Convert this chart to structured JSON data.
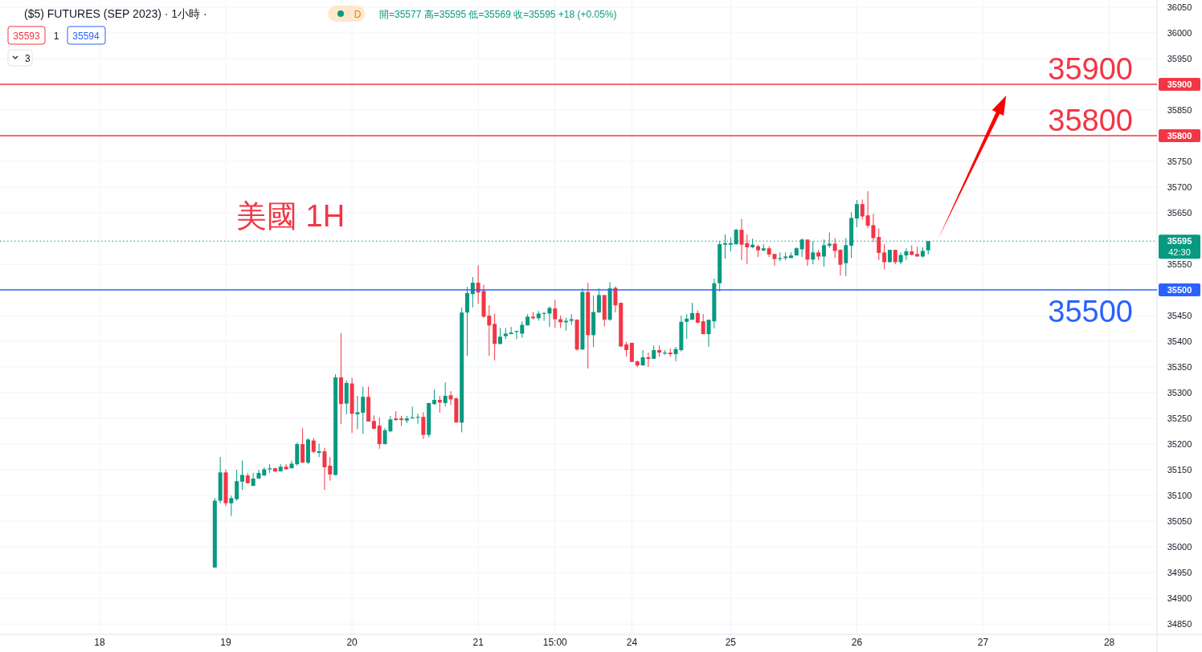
{
  "chart_data": {
    "type": "candlestick",
    "title": "($5) FUTURES (SEP 2023) · 1小時 ·",
    "annotations": [
      "美國 1H",
      "開=35577 高=35595 低=35569 收=35595 +18 (+0.05%)",
      "D",
      "35593",
      "1",
      "35594",
      "3",
      {
        "text": "35900",
        "y": 35900
      },
      {
        "text": "35800",
        "y": 35800
      },
      {
        "text": "35500",
        "y": 35500
      },
      "42:30"
    ],
    "categories": [
      null,
      null,
      null,
      null,
      null,
      null,
      null,
      null,
      null,
      null,
      null,
      null,
      null,
      null,
      null,
      null,
      null,
      null,
      "18",
      null,
      null,
      null,
      null,
      null,
      null,
      null,
      null,
      null,
      null,
      null,
      null,
      null,
      null,
      null,
      null,
      null,
      null,
      null,
      null,
      null,
      null,
      "19",
      null,
      null,
      null,
      null,
      null,
      null,
      null,
      null,
      null,
      null,
      null,
      null,
      null,
      null,
      null,
      null,
      null,
      null,
      null,
      null,
      null,
      null,
      "20",
      null,
      null,
      null,
      null,
      null,
      null,
      null,
      null,
      null,
      null,
      null,
      null,
      null,
      null,
      null,
      null,
      null,
      null,
      null,
      null,
      null,
      null,
      "21",
      null,
      null,
      null,
      null,
      null,
      null,
      null,
      null,
      null,
      null,
      null,
      null,
      null,
      "15:00",
      null,
      null,
      null,
      null,
      null,
      null,
      null,
      null,
      null,
      null,
      null,
      null,
      null,
      "24",
      null,
      null,
      null,
      null,
      null,
      null,
      null,
      null,
      null,
      null,
      null,
      null,
      null,
      null,
      null,
      null,
      null,
      "25",
      null,
      null,
      null,
      null,
      null,
      null,
      null,
      null,
      null,
      null,
      null,
      null,
      null,
      null,
      null,
      null,
      null,
      null,
      null,
      null,
      null,
      null,
      "26",
      null,
      null,
      null,
      null,
      null,
      null,
      null,
      null,
      null,
      null,
      null,
      null,
      null,
      null,
      null,
      null,
      null,
      null,
      null,
      null,
      null,
      null,
      "27",
      null,
      null,
      null,
      null,
      null,
      null,
      null,
      null,
      null,
      null,
      null,
      null,
      null,
      null,
      null,
      null,
      null,
      null,
      null,
      null,
      null,
      null,
      "28",
      null,
      null,
      null,
      null,
      null,
      null,
      null,
      null
    ],
    "ohlc": [
      null,
      null,
      null,
      null,
      null,
      null,
      null,
      null,
      null,
      null,
      null,
      null,
      null,
      null,
      null,
      null,
      null,
      null,
      null,
      null,
      null,
      null,
      null,
      null,
      null,
      null,
      null,
      null,
      null,
      null,
      null,
      null,
      null,
      null,
      null,
      null,
      null,
      null,
      null,
      [
        34960,
        35095,
        34960,
        35090
      ],
      [
        35090,
        35175,
        35085,
        35145
      ],
      [
        35145,
        35151,
        35080,
        35085
      ],
      [
        35085,
        35100,
        35060,
        35095
      ],
      [
        35093,
        35150,
        35090,
        35128
      ],
      [
        35127,
        35168,
        35111,
        35140
      ],
      [
        35139,
        35144,
        35124,
        35124
      ],
      [
        35119,
        35144,
        35118,
        35133
      ],
      [
        35133,
        35150,
        35133,
        35144
      ],
      [
        35139,
        35155,
        35138,
        35151
      ],
      [
        35151,
        35161,
        35144,
        35153
      ],
      [
        35153,
        35154,
        35146,
        35147
      ],
      [
        35147,
        35161,
        35147,
        35156
      ],
      [
        35156,
        35161,
        35151,
        35151
      ],
      [
        35153,
        35168,
        35153,
        35162
      ],
      [
        35161,
        35203,
        35158,
        35200
      ],
      [
        35200,
        35231,
        35164,
        35164
      ],
      [
        35164,
        35211,
        35161,
        35209
      ],
      [
        35207,
        35212,
        35182,
        35185
      ],
      [
        35183,
        35201,
        35175,
        35186
      ],
      [
        35186,
        35193,
        35111,
        35155
      ],
      [
        35158,
        35175,
        35129,
        35141
      ],
      [
        35140,
        35336,
        35139,
        35330
      ],
      [
        35330,
        35416,
        35239,
        35278
      ],
      [
        35279,
        35324,
        35258,
        35319
      ],
      [
        35318,
        35329,
        35222,
        35259
      ],
      [
        35258,
        35294,
        35229,
        35262
      ],
      [
        35261,
        35312,
        35220,
        35292
      ],
      [
        35292,
        35312,
        35244,
        35244
      ],
      [
        35245,
        35256,
        35229,
        35230
      ],
      [
        35236,
        35252,
        35191,
        35200
      ],
      [
        35200,
        35231,
        35200,
        35227
      ],
      [
        35225,
        35255,
        35223,
        35248
      ],
      [
        35250,
        35264,
        35245,
        35247
      ],
      [
        35250,
        35255,
        35235,
        35247
      ],
      [
        35246,
        35255,
        35241,
        35250
      ],
      [
        35250,
        35273,
        35250,
        35252
      ],
      [
        35252,
        35259,
        35239,
        35253
      ],
      [
        35253,
        35262,
        35210,
        35218
      ],
      [
        35218,
        35280,
        35213,
        35280
      ],
      [
        35278,
        35306,
        35276,
        35286
      ],
      [
        35286,
        35294,
        35261,
        35281
      ],
      [
        35280,
        35320,
        35273,
        35294
      ],
      [
        35295,
        35303,
        35276,
        35287
      ],
      [
        35289,
        35291,
        35242,
        35242
      ],
      [
        35242,
        35466,
        35223,
        35456
      ],
      [
        35456,
        35506,
        35372,
        35494
      ],
      [
        35492,
        35525,
        35466,
        35514
      ],
      [
        35514,
        35548,
        35473,
        35495
      ],
      [
        35498,
        35510,
        35446,
        35448
      ],
      [
        35450,
        35470,
        35372,
        35431
      ],
      [
        35434,
        35454,
        35363,
        35395
      ],
      [
        35395,
        35426,
        35394,
        35409
      ],
      [
        35410,
        35426,
        35404,
        35415
      ],
      [
        35414,
        35428,
        35414,
        35417
      ],
      [
        35418,
        35421,
        35404,
        35420
      ],
      [
        35415,
        35439,
        35407,
        35432
      ],
      [
        35431,
        35453,
        35431,
        35448
      ],
      [
        35448,
        35457,
        35442,
        35445
      ],
      [
        35445,
        35459,
        35440,
        35454
      ],
      [
        35454,
        35457,
        35440,
        35455
      ],
      [
        35454,
        35468,
        35428,
        35465
      ],
      [
        35464,
        35481,
        35426,
        35443
      ],
      [
        35443,
        35450,
        35426,
        35437
      ],
      [
        35437,
        35446,
        35421,
        35440
      ],
      [
        35440,
        35453,
        35432,
        35443
      ],
      [
        35442,
        35443,
        35382,
        35384
      ],
      [
        35384,
        35503,
        35384,
        35496
      ],
      [
        35496,
        35514,
        35347,
        35412
      ],
      [
        35412,
        35489,
        35389,
        35457
      ],
      [
        35456,
        35503,
        35456,
        35490
      ],
      [
        35490,
        35490,
        35429,
        35442
      ],
      [
        35442,
        35515,
        35440,
        35503
      ],
      [
        35504,
        35507,
        35456,
        35470
      ],
      [
        35475,
        35475,
        35389,
        35390
      ],
      [
        35394,
        35399,
        35370,
        35383
      ],
      [
        35397,
        35397,
        35360,
        35360
      ],
      [
        35361,
        35363,
        35350,
        35353
      ],
      [
        35353,
        35383,
        35353,
        35369
      ],
      [
        35369,
        35378,
        35350,
        35366
      ],
      [
        35366,
        35392,
        35366,
        35383
      ],
      [
        35383,
        35392,
        35370,
        35378
      ],
      [
        35376,
        35383,
        35374,
        35378
      ],
      [
        35378,
        35386,
        35370,
        35375
      ],
      [
        35375,
        35389,
        35361,
        35385
      ],
      [
        35383,
        35450,
        35380,
        35438
      ],
      [
        35438,
        35453,
        35405,
        35444
      ],
      [
        35442,
        35475,
        35442,
        35455
      ],
      [
        35455,
        35460,
        35436,
        35436
      ],
      [
        35439,
        35453,
        35414,
        35414
      ],
      [
        35414,
        35442,
        35389,
        35442
      ],
      [
        35439,
        35522,
        35425,
        35513
      ],
      [
        35513,
        35595,
        35497,
        35589
      ],
      [
        35588,
        35608,
        35561,
        35591
      ],
      [
        35588,
        35602,
        35575,
        35591
      ],
      [
        35589,
        35619,
        35588,
        35617
      ],
      [
        35617,
        35638,
        35558,
        35588
      ],
      [
        35591,
        35608,
        35550,
        35583
      ],
      [
        35583,
        35600,
        35581,
        35588
      ],
      [
        35585,
        35588,
        35564,
        35577
      ],
      [
        35577,
        35589,
        35575,
        35581
      ],
      [
        35581,
        35585,
        35564,
        35569
      ],
      [
        35570,
        35570,
        35547,
        35560
      ],
      [
        35560,
        35573,
        35556,
        35562
      ],
      [
        35562,
        35573,
        35558,
        35565
      ],
      [
        35562,
        35573,
        35562,
        35567
      ],
      [
        35567,
        35583,
        35567,
        35581
      ],
      [
        35579,
        35600,
        35564,
        35598
      ],
      [
        35598,
        35598,
        35547,
        35559
      ],
      [
        35559,
        35595,
        35550,
        35573
      ],
      [
        35573,
        35578,
        35558,
        35565
      ],
      [
        35565,
        35598,
        35545,
        35587
      ],
      [
        35586,
        35612,
        35582,
        35590
      ],
      [
        35590,
        35601,
        35562,
        35576
      ],
      [
        35578,
        35579,
        35528,
        35549
      ],
      [
        35552,
        35601,
        35527,
        35587
      ],
      [
        35586,
        35651,
        35562,
        35640
      ],
      [
        35639,
        35675,
        35622,
        35667
      ],
      [
        35667,
        35676,
        35637,
        35643
      ],
      [
        35645,
        35692,
        35620,
        35625
      ],
      [
        35626,
        35648,
        35593,
        35601
      ],
      [
        35603,
        35620,
        35558,
        35572
      ],
      [
        35573,
        35589,
        35540,
        35554
      ],
      [
        35554,
        35578,
        35554,
        35578
      ],
      [
        35578,
        35578,
        35550,
        35554
      ],
      [
        35554,
        35573,
        35550,
        35568
      ],
      [
        35567,
        35581,
        35558,
        35575
      ],
      [
        35575,
        35587,
        35568,
        35568
      ],
      [
        35570,
        35584,
        35565,
        35565
      ],
      [
        35565,
        35583,
        35563,
        35576
      ],
      [
        35577,
        35595,
        35569,
        35595
      ],
      null,
      null,
      null,
      null,
      null,
      null,
      null,
      null,
      null,
      null,
      null,
      null,
      null,
      null,
      null,
      null,
      null,
      null,
      null,
      null,
      null,
      null,
      null,
      null,
      null,
      null,
      null,
      null,
      null,
      null,
      null,
      null,
      null,
      null,
      null,
      null,
      null,
      null,
      null,
      null,
      null
    ],
    "colors": [
      null,
      null,
      null,
      null,
      null,
      null,
      null,
      null,
      null,
      null,
      null,
      null,
      null,
      null,
      null,
      null,
      null,
      null,
      null,
      null,
      null,
      null,
      null,
      null,
      null,
      null,
      null,
      null,
      null,
      null,
      null,
      null,
      null,
      null,
      null,
      null,
      null,
      null,
      null,
      "#089981",
      "#089981",
      "#f23645",
      "#089981",
      "#089981",
      "#089981",
      "#f23645",
      "#089981",
      "#089981",
      "#089981",
      "#089981",
      "#f23645",
      "#089981",
      "#f23645",
      "#089981",
      "#089981",
      "#f23645",
      "#089981",
      "#f23645",
      "#089981",
      "#f23645",
      "#f23645",
      "#089981",
      "#f23645",
      "#089981",
      "#f23645",
      "#089981",
      "#089981",
      "#f23645",
      "#f23645",
      "#f23645",
      "#089981",
      "#089981",
      "#f23645",
      "#f23645",
      "#089981",
      "#089981",
      "#089981",
      "#f23645",
      "#089981",
      "#089981",
      "#f23645",
      "#089981",
      "#f23645",
      "#f23645",
      "#089981",
      "#089981",
      "#089981",
      "#f23645",
      "#f23645",
      "#f23645",
      "#f23645",
      "#089981",
      "#089981",
      "#089981",
      "#089981",
      "#089981",
      "#089981",
      "#f23645",
      "#089981",
      "#089981",
      "#089981",
      "#f23645",
      "#f23645",
      "#089981",
      "#089981",
      "#f23645",
      "#089981",
      "#f23645",
      "#089981",
      "#089981",
      "#f23645",
      "#089981",
      "#f23645",
      "#f23645",
      "#f23645",
      "#f23645",
      "#f23645",
      "#089981",
      "#f23645",
      "#089981",
      "#f23645",
      "#089981",
      "#f23645",
      "#089981",
      "#089981",
      "#089981",
      "#089981",
      "#f23645",
      "#f23645",
      "#089981",
      "#089981",
      "#089981",
      "#089981",
      "#089981",
      "#089981",
      "#f23645",
      "#f23645",
      "#089981",
      "#f23645",
      "#089981",
      "#f23645",
      "#f23645",
      "#089981",
      "#089981",
      "#089981",
      "#089981",
      "#089981",
      "#f23645",
      "#089981",
      "#f23645",
      "#089981",
      "#089981",
      "#f23645",
      "#f23645",
      "#089981",
      "#089981",
      "#089981",
      "#f23645",
      "#f23645",
      "#f23645",
      "#f23645",
      "#f23645",
      "#089981",
      "#f23645",
      "#089981",
      "#089981",
      "#f23645",
      "#f23645",
      "#089981",
      "#089981",
      null,
      null,
      null,
      null,
      null,
      null,
      null,
      null,
      null,
      null,
      null,
      null,
      null,
      null,
      null,
      null,
      null,
      null,
      null,
      null,
      null,
      null,
      null,
      null,
      null,
      null,
      null,
      null,
      null,
      null,
      null,
      null,
      null,
      null,
      null,
      null,
      null,
      null,
      null,
      null,
      null
    ],
    "ylim": [
      34830,
      36064
    ],
    "yticks": [
      34850,
      34900,
      34950,
      35000,
      35050,
      35100,
      35150,
      35200,
      35250,
      35300,
      35350,
      35400,
      35450,
      35550,
      35650,
      35700,
      35750,
      35850,
      35950,
      36000,
      36050
    ],
    "ref_lines": [
      {
        "axis": "y",
        "value": 35900,
        "label": "35900",
        "color": "#f23645"
      },
      {
        "axis": "y",
        "value": 35800,
        "label": "35800",
        "color": "#f23645"
      },
      {
        "axis": "y",
        "value": 35500,
        "label": "35500",
        "color": "#2962ff"
      },
      {
        "axis": "y",
        "value": 35595,
        "label": "35595",
        "color": "#089981",
        "line_style": "dotted"
      }
    ],
    "grid": true
  }
}
